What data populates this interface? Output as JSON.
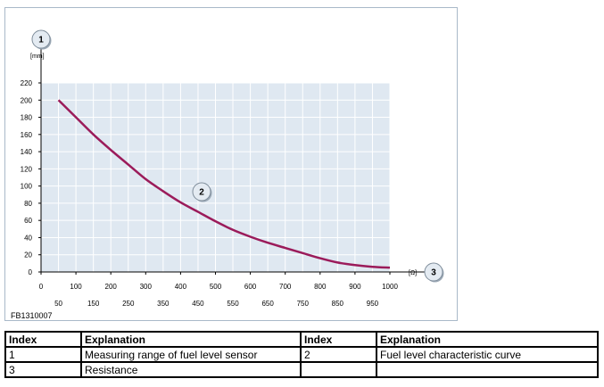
{
  "figure": {
    "id_label": "FB1310007",
    "y_unit": "[mm]",
    "x_unit": "[Ω]",
    "callouts": {
      "y_axis": "1",
      "curve": "2",
      "x_axis": "3"
    },
    "colors": {
      "curve": "#9b1b5a",
      "plot_bg": "#dfe8f1",
      "grid": "#ffffff",
      "callout_fill": "#e4ebf2"
    }
  },
  "chart_data": {
    "type": "line",
    "title": "",
    "xlabel": "",
    "ylabel": "",
    "xlim": [
      0,
      1000
    ],
    "ylim": [
      0,
      220
    ],
    "x_ticks_top": [
      "0",
      "100",
      "200",
      "300",
      "400",
      "500",
      "600",
      "700",
      "800",
      "900",
      "1000"
    ],
    "x_ticks_bottom": [
      "50",
      "150",
      "250",
      "350",
      "450",
      "550",
      "650",
      "750",
      "850",
      "950"
    ],
    "y_ticks": [
      "0",
      "20",
      "40",
      "60",
      "80",
      "100",
      "120",
      "140",
      "160",
      "180",
      "200",
      "220"
    ],
    "grid": true,
    "series": [
      {
        "x": [
          50,
          100,
          150,
          200,
          250,
          300,
          350,
          400,
          450,
          500,
          550,
          600,
          650,
          700,
          750,
          800,
          850,
          900,
          950,
          1000
        ],
        "y": [
          200,
          180,
          160,
          142,
          125,
          108,
          94,
          81,
          70,
          59,
          49,
          41,
          34,
          28,
          22,
          16,
          11,
          8,
          6,
          5
        ]
      }
    ]
  },
  "legend_table": {
    "headers": [
      "Index",
      "Explanation",
      "Index",
      "Explanation"
    ],
    "rows": [
      [
        "1",
        "Measuring range of fuel level sensor",
        "2",
        "Fuel level characteristic curve"
      ],
      [
        "3",
        "Resistance",
        "",
        ""
      ]
    ]
  }
}
